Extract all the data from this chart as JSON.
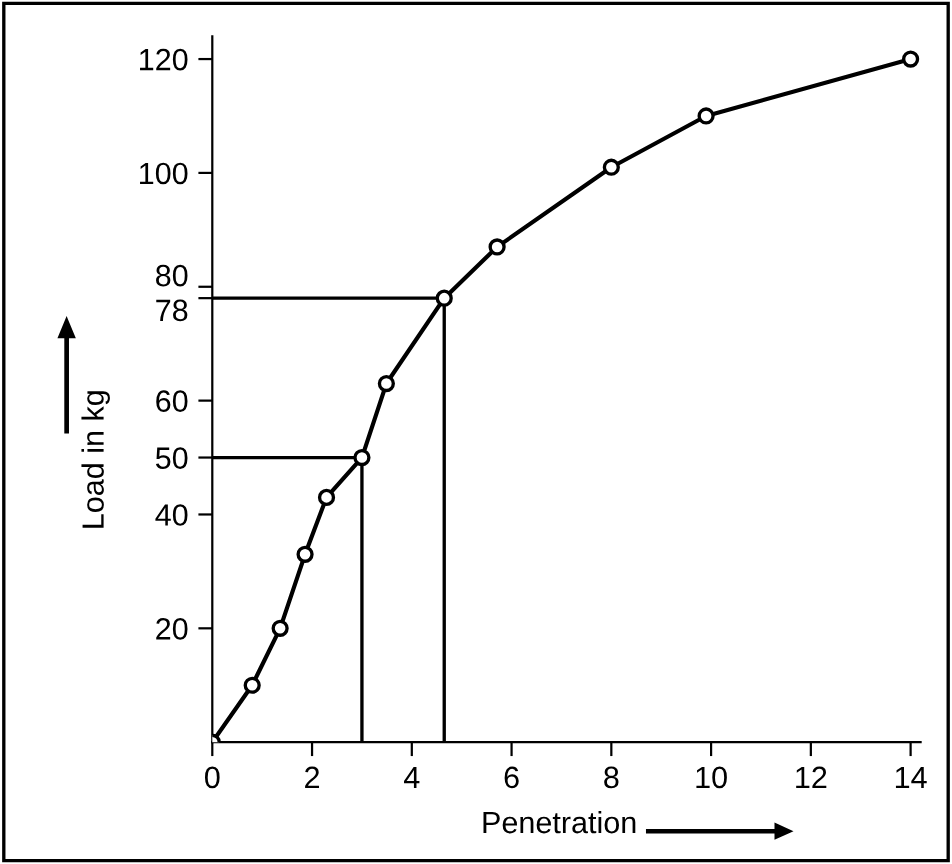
{
  "chart_data": {
    "type": "line",
    "xlabel": "Penetration",
    "ylabel": "Load in kg",
    "x": [
      0,
      0.8,
      1.36,
      1.86,
      2.29,
      3.0,
      3.49,
      4.65,
      5.71,
      8.0,
      9.9,
      14
    ],
    "series": [
      {
        "color": "#000000",
        "values": [
          0,
          10,
          20,
          33,
          43,
          50,
          63,
          78,
          87,
          101,
          110,
          120
        ]
      }
    ],
    "marker": "circle",
    "line_style": "solid",
    "grid": false,
    "legend": false,
    "xlim": [
      0,
      14.2
    ],
    "ylim": [
      0,
      124
    ],
    "xticks": [
      0,
      2,
      4,
      6,
      8,
      10,
      12,
      14
    ],
    "yticks": [
      20,
      40,
      50,
      60,
      78,
      80,
      100,
      120
    ],
    "ref_lines": [
      {
        "axis": "x",
        "value": 3.0,
        "color": "#000000"
      },
      {
        "axis": "x",
        "value": 4.65,
        "color": "#000000"
      },
      {
        "axis": "y",
        "value": 50,
        "color": "#000000"
      },
      {
        "axis": "y",
        "value": 78,
        "color": "#000000"
      }
    ]
  }
}
